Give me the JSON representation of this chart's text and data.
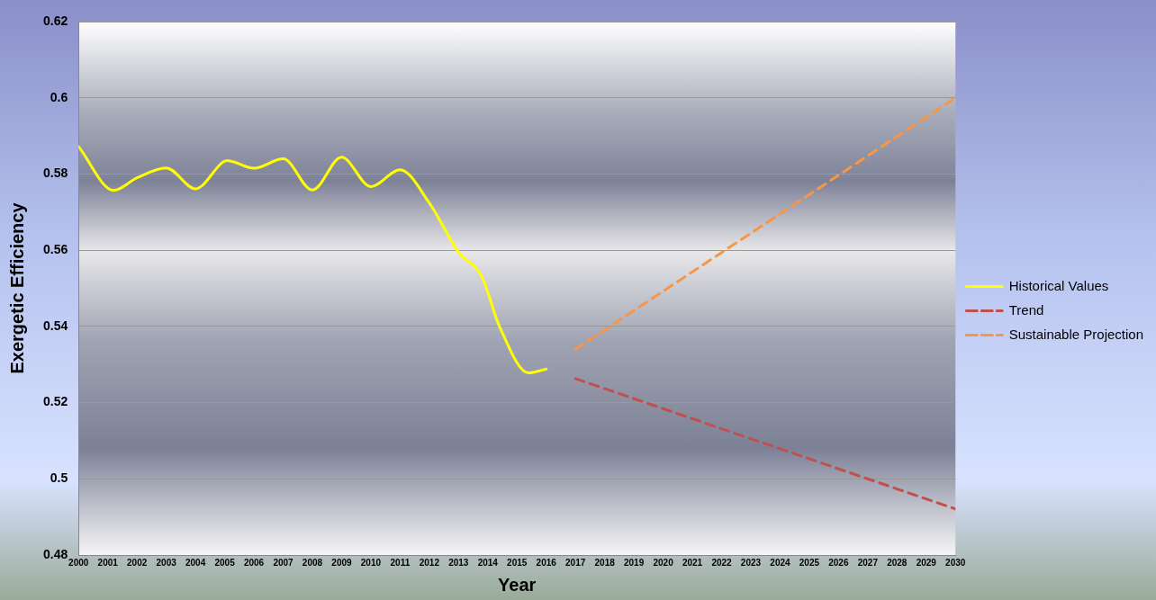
{
  "chart_data": {
    "type": "line",
    "xlabel": "Year",
    "ylabel": "Exergetic Efficiency",
    "xlim": [
      2000,
      2030
    ],
    "xticks": [
      2000,
      2001,
      2002,
      2003,
      2004,
      2005,
      2006,
      2007,
      2008,
      2009,
      2010,
      2011,
      2012,
      2013,
      2014,
      2015,
      2016,
      2017,
      2018,
      2019,
      2020,
      2021,
      2022,
      2023,
      2024,
      2025,
      2026,
      2027,
      2028,
      2029,
      2030
    ],
    "ylim": [
      0.48,
      0.62
    ],
    "yticks": [
      0.48,
      0.5,
      0.52,
      0.54,
      0.56,
      0.58,
      0.6,
      0.62
    ],
    "grid": "y",
    "legend": "right",
    "marker": "none",
    "series": [
      {
        "name": "Historical Values",
        "color": "#ffff00",
        "line_style": "solid",
        "x": [
          2000,
          2001.2,
          2002,
          2003,
          2004,
          2005.1,
          2006,
          2007,
          2008,
          2009,
          2010,
          2011,
          2012,
          2013,
          2013.8,
          2014.4,
          2015.4,
          2016
        ],
        "values": [
          0.5872,
          0.5757,
          0.579,
          0.5816,
          0.5761,
          0.5835,
          0.5815,
          0.584,
          0.5758,
          0.5844,
          0.5767,
          0.5811,
          0.5724,
          0.5595,
          0.553,
          0.54,
          0.5278,
          0.5288
        ]
      },
      {
        "name": "Trend",
        "color": "#c0504d",
        "line_style": "dashed",
        "x": [
          2017,
          2030
        ],
        "values": [
          0.5263,
          0.4921
        ]
      },
      {
        "name": "Sustainable Projection",
        "color": "#f79646",
        "line_style": "dashed",
        "x": [
          2017,
          2030
        ],
        "values": [
          0.534,
          0.6
        ]
      }
    ]
  }
}
